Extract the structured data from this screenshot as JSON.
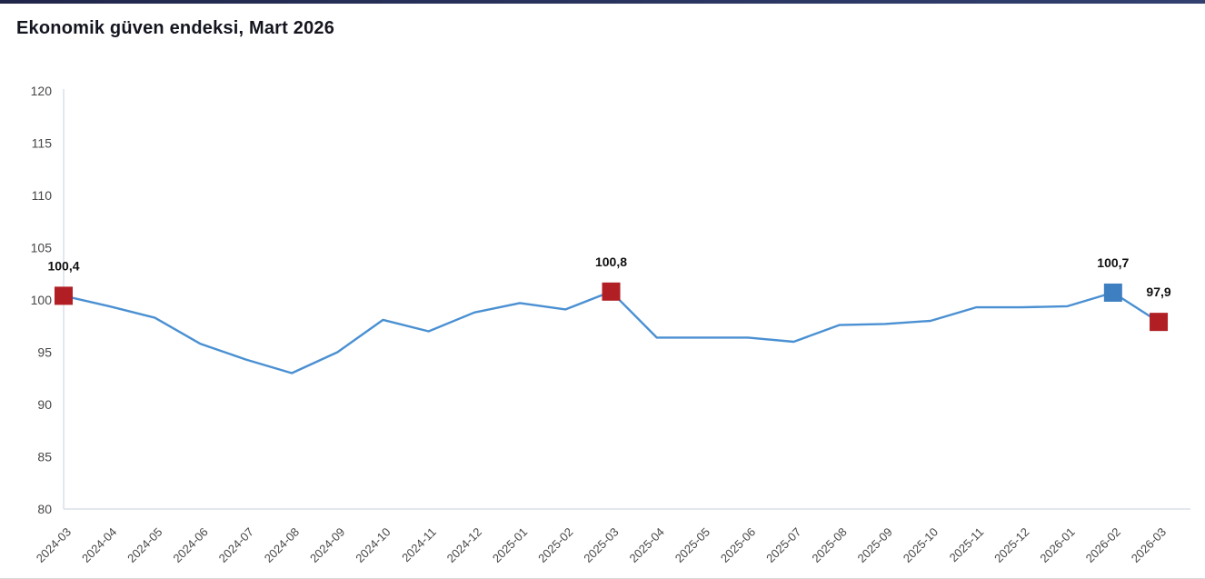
{
  "page": {
    "top_bar_color": "#2a3560",
    "background_color": "#ffffff"
  },
  "chart_data": {
    "type": "line",
    "title": "Ekonomik güven endeksi, Mart 2026",
    "x": [
      "2024-03",
      "2024-04",
      "2024-05",
      "2024-06",
      "2024-07",
      "2024-08",
      "2024-09",
      "2024-10",
      "2024-11",
      "2024-12",
      "2025-01",
      "2025-02",
      "2025-03",
      "2025-04",
      "2025-05",
      "2025-06",
      "2025-07",
      "2025-08",
      "2025-09",
      "2025-10",
      "2025-11",
      "2025-12",
      "2026-01",
      "2026-02",
      "2026-03"
    ],
    "values": [
      100.4,
      99.4,
      98.3,
      95.8,
      94.3,
      93.0,
      95.0,
      98.1,
      97.0,
      98.8,
      99.7,
      99.1,
      100.8,
      96.4,
      96.4,
      96.4,
      96.0,
      97.6,
      97.7,
      98.0,
      99.3,
      99.3,
      99.4,
      100.7,
      97.9
    ],
    "ylim": [
      80,
      120
    ],
    "yticks": [
      80,
      85,
      90,
      95,
      100,
      105,
      110,
      115,
      120
    ],
    "grid": false,
    "legend": "none",
    "line_color": "#4a90d2",
    "axis_line_color": "#d9e0e9",
    "tick_label_color": "#474747",
    "data_label_color": "#101010",
    "highlighted_points": [
      {
        "x": "2024-03",
        "value": 100.4,
        "label": "100,4",
        "marker_color": "#b11f24"
      },
      {
        "x": "2025-03",
        "value": 100.8,
        "label": "100,8",
        "marker_color": "#b11f24"
      },
      {
        "x": "2026-02",
        "value": 100.7,
        "label": "100,7",
        "marker_color": "#3d7fc1"
      },
      {
        "x": "2026-03",
        "value": 97.9,
        "label": "97,9",
        "marker_color": "#b11f24"
      }
    ]
  }
}
